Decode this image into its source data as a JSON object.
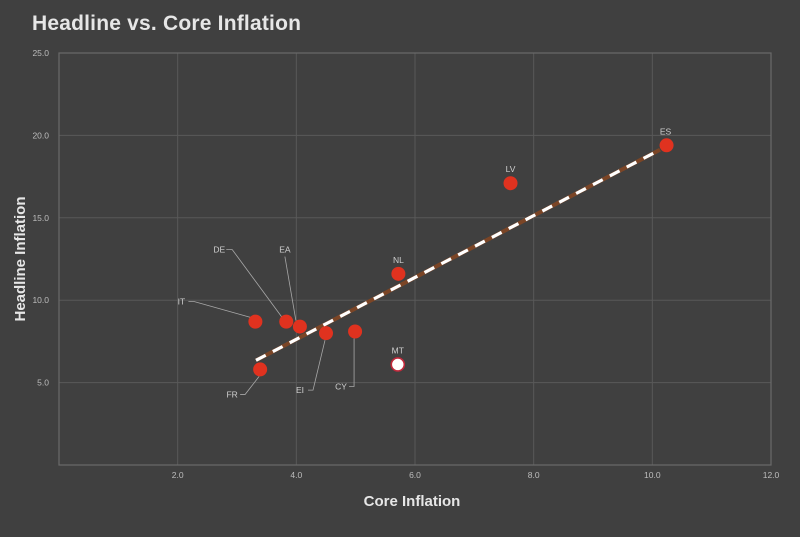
{
  "chart_data": {
    "type": "scatter",
    "title": "Headline vs. Core Inflation",
    "xlabel": "Core Inflation",
    "ylabel": "Headline Inflation",
    "xlim": [
      0,
      12
    ],
    "ylim": [
      0,
      25
    ],
    "xticks": [
      2,
      4,
      6,
      8,
      10,
      12
    ],
    "xtick_labels": [
      "2.0",
      "4.0",
      "6.0",
      "8.0",
      "10.0",
      "12.0"
    ],
    "yticks": [
      5,
      10,
      15,
      20,
      25
    ],
    "ytick_labels": [
      "5.0",
      "10.0",
      "15.0",
      "20.0",
      "25.0"
    ],
    "grid": true,
    "legend": "none",
    "points": [
      {
        "label": "IT",
        "x": 3.31,
        "y": 8.7,
        "highlight": false
      },
      {
        "label": "DE",
        "x": 3.83,
        "y": 8.7,
        "highlight": false
      },
      {
        "label": "EA",
        "x": 4.06,
        "y": 8.4,
        "highlight": false
      },
      {
        "label": "EI",
        "x": 4.5,
        "y": 8.0,
        "highlight": false
      },
      {
        "label": "CY",
        "x": 4.99,
        "y": 8.1,
        "highlight": false
      },
      {
        "label": "FR",
        "x": 3.39,
        "y": 5.8,
        "highlight": false
      },
      {
        "label": "NL",
        "x": 5.72,
        "y": 11.6,
        "highlight": false
      },
      {
        "label": "MT",
        "x": 5.71,
        "y": 6.1,
        "highlight": true
      },
      {
        "label": "LV",
        "x": 7.61,
        "y": 17.1,
        "highlight": false
      },
      {
        "label": "ES",
        "x": 10.24,
        "y": 19.4,
        "highlight": false
      }
    ],
    "trendline": {
      "x": [
        3.32,
        10.13
      ],
      "y": [
        6.35,
        19.13
      ],
      "style": "dashed"
    },
    "colors": {
      "point_fill": "#e0321f",
      "highlight_fill": "#ffffff",
      "highlight_stroke": "#c0283a",
      "trend_base": "#7b4526",
      "trend_dash": "#ffffff"
    }
  }
}
